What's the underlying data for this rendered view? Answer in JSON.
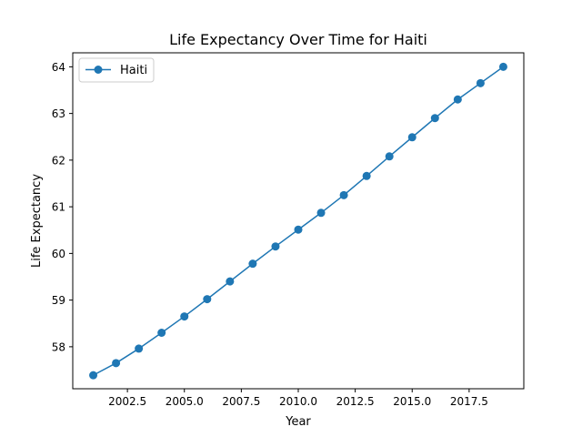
{
  "chart_data": {
    "type": "line",
    "title": "Life Expectancy Over Time for Haiti",
    "xlabel": "Year",
    "ylabel": "Life Expectancy",
    "xlim": [
      2000.1,
      2019.9
    ],
    "ylim": [
      57.1,
      64.3
    ],
    "xticks": [
      {
        "value": 2002.5,
        "label": "2002.5"
      },
      {
        "value": 2005.0,
        "label": "2005.0"
      },
      {
        "value": 2007.5,
        "label": "2007.5"
      },
      {
        "value": 2010.0,
        "label": "2010.0"
      },
      {
        "value": 2012.5,
        "label": "2012.5"
      },
      {
        "value": 2015.0,
        "label": "2015.0"
      },
      {
        "value": 2017.5,
        "label": "2017.5"
      }
    ],
    "yticks": [
      {
        "value": 58,
        "label": "58"
      },
      {
        "value": 59,
        "label": "59"
      },
      {
        "value": 60,
        "label": "60"
      },
      {
        "value": 61,
        "label": "61"
      },
      {
        "value": 62,
        "label": "62"
      },
      {
        "value": 63,
        "label": "63"
      },
      {
        "value": 64,
        "label": "64"
      }
    ],
    "grid": false,
    "legend_position": "upper-left",
    "series": [
      {
        "name": "Haiti",
        "color": "#1f77b4",
        "marker": "circle",
        "x": [
          2001,
          2002,
          2003,
          2004,
          2005,
          2006,
          2007,
          2008,
          2009,
          2010,
          2011,
          2012,
          2013,
          2014,
          2015,
          2016,
          2017,
          2018,
          2019
        ],
        "y": [
          57.39,
          57.65,
          57.96,
          58.3,
          58.65,
          59.02,
          59.4,
          59.78,
          60.15,
          60.51,
          60.87,
          61.25,
          61.66,
          62.08,
          62.49,
          62.9,
          63.3,
          63.65,
          64.0
        ]
      }
    ]
  }
}
